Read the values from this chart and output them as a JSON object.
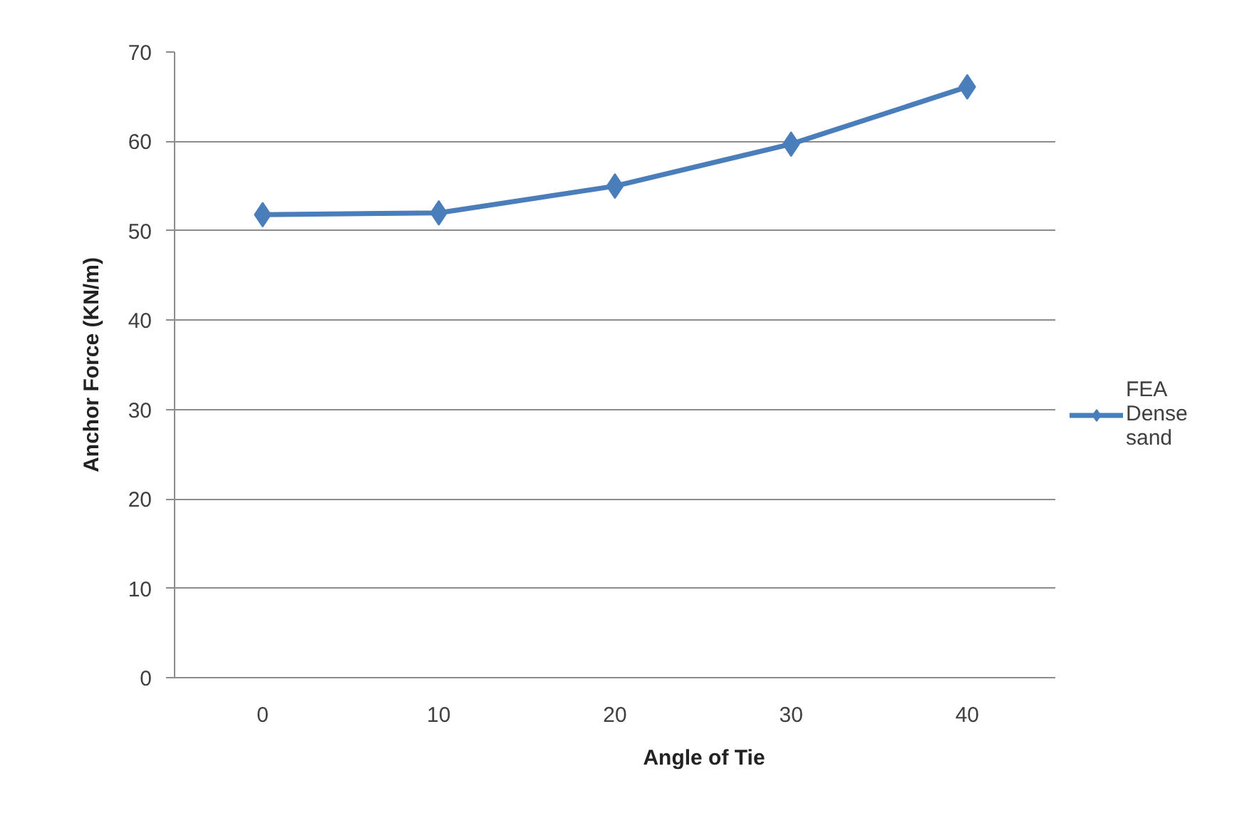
{
  "chart_data": {
    "type": "line",
    "xlabel": "Angle of Tie",
    "ylabel": "Anchor Force (KN/m)",
    "categories": [
      "0",
      "10",
      "20",
      "30",
      "40"
    ],
    "series": [
      {
        "name": "FEA Dense sand",
        "color": "#4a7ebb",
        "values": [
          51.8,
          52.0,
          55.0,
          59.7,
          66.1
        ]
      }
    ],
    "ylim": [
      0,
      70
    ],
    "yticks": [
      0,
      10,
      20,
      30,
      40,
      50,
      60,
      70
    ],
    "grid": "y",
    "legend": "right",
    "marker": "diamond",
    "line_style": "solid"
  }
}
